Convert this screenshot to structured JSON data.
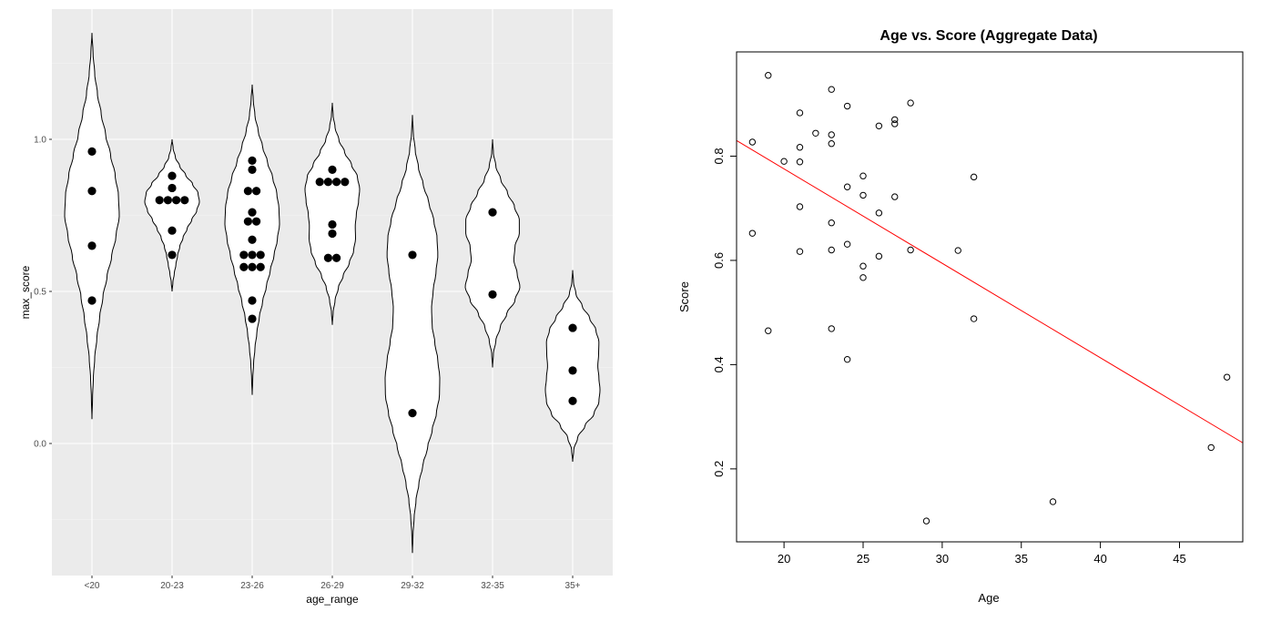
{
  "chart_data": [
    {
      "type": "violin",
      "title": "",
      "xlabel": "age_range",
      "ylabel": "max_score",
      "categories": [
        "<20",
        "20-23",
        "23-26",
        "26-29",
        "29-32",
        "32-35",
        "35+"
      ],
      "yticks": [
        "0.0",
        "0.5",
        "1.0"
      ],
      "ylim": [
        -0.4,
        1.43
      ],
      "background": "#ebebeb",
      "grid": true,
      "groups": [
        {
          "category": "<20",
          "points": [
            0.96,
            0.83,
            0.65,
            0.47
          ],
          "range": [
            0.08,
            1.35
          ],
          "shape": [
            0.02,
            0.05,
            0.1,
            0.18,
            0.28,
            0.4,
            0.55,
            0.72,
            0.88,
            1.0,
            0.97,
            0.85,
            0.68,
            0.5,
            0.34,
            0.2,
            0.1,
            0.04
          ]
        },
        {
          "category": "20-23",
          "points": [
            0.88,
            0.84,
            0.8,
            0.8,
            0.8,
            0.8,
            0.7,
            0.62
          ],
          "range": [
            0.5,
            1.0
          ],
          "shape": [
            0.03,
            0.08,
            0.14,
            0.2,
            0.28,
            0.4,
            0.55,
            0.72,
            0.9,
            1.0,
            0.95,
            0.75,
            0.5,
            0.28,
            0.12,
            0.04
          ]
        },
        {
          "category": "23-26",
          "points": [
            0.93,
            0.9,
            0.83,
            0.83,
            0.76,
            0.73,
            0.73,
            0.67,
            0.62,
            0.62,
            0.62,
            0.58,
            0.58,
            0.58,
            0.47,
            0.41
          ],
          "range": [
            0.16,
            1.18
          ],
          "shape": [
            0.02,
            0.05,
            0.1,
            0.17,
            0.26,
            0.38,
            0.52,
            0.66,
            0.8,
            0.92,
            1.0,
            0.98,
            0.9,
            0.75,
            0.56,
            0.38,
            0.22,
            0.1,
            0.04
          ]
        },
        {
          "category": "26-29",
          "points": [
            0.9,
            0.86,
            0.86,
            0.86,
            0.86,
            0.72,
            0.69,
            0.61,
            0.61
          ],
          "range": [
            0.39,
            1.12
          ],
          "shape": [
            0.03,
            0.1,
            0.22,
            0.4,
            0.62,
            0.78,
            0.85,
            0.84,
            0.88,
            0.96,
            1.0,
            0.92,
            0.7,
            0.45,
            0.24,
            0.1,
            0.03
          ]
        },
        {
          "category": "29-32",
          "points": [
            0.62,
            0.1
          ],
          "range": [
            -0.36,
            1.08
          ],
          "shape": [
            0.02,
            0.06,
            0.13,
            0.24,
            0.38,
            0.55,
            0.72,
            0.88,
            0.99,
            1.0,
            0.93,
            0.82,
            0.72,
            0.7,
            0.76,
            0.86,
            0.93,
            0.9,
            0.78,
            0.6,
            0.4,
            0.22,
            0.1,
            0.03
          ]
        },
        {
          "category": "32-35",
          "points": [
            0.76,
            0.49
          ],
          "range": [
            0.25,
            1.0
          ],
          "shape": [
            0.03,
            0.12,
            0.28,
            0.52,
            0.82,
            1.0,
            0.9,
            0.78,
            0.82,
            0.98,
            0.98,
            0.8,
            0.55,
            0.3,
            0.12,
            0.03
          ]
        },
        {
          "category": "35+",
          "points": [
            0.38,
            0.24,
            0.14
          ],
          "range": [
            -0.06,
            0.57
          ],
          "shape": [
            0.04,
            0.18,
            0.45,
            0.78,
            0.96,
            1.0,
            0.96,
            0.92,
            0.95,
            0.96,
            0.85,
            0.62,
            0.35,
            0.12,
            0.03
          ]
        }
      ]
    },
    {
      "type": "scatter",
      "title": "Age vs. Score (Aggregate Data)",
      "xlabel": "Age",
      "ylabel": "Score",
      "xlim": [
        17,
        49
      ],
      "ylim": [
        0.06,
        1.0
      ],
      "xticks": [
        20,
        25,
        30,
        35,
        40,
        45
      ],
      "yticks": [
        0.2,
        0.4,
        0.6,
        0.8
      ],
      "fit_line": {
        "color": "#ff0000",
        "from": [
          17,
          0.83
        ],
        "to": [
          49,
          0.25
        ]
      },
      "points": [
        [
          18,
          0.827
        ],
        [
          18,
          0.652
        ],
        [
          19,
          0.955
        ],
        [
          19,
          0.465
        ],
        [
          20,
          0.79
        ],
        [
          21,
          0.883
        ],
        [
          21,
          0.817
        ],
        [
          21,
          0.789
        ],
        [
          21,
          0.703
        ],
        [
          21,
          0.617
        ],
        [
          22,
          0.844
        ],
        [
          23,
          0.928
        ],
        [
          23,
          0.841
        ],
        [
          23,
          0.824
        ],
        [
          23,
          0.672
        ],
        [
          23,
          0.62
        ],
        [
          23,
          0.469
        ],
        [
          24,
          0.896
        ],
        [
          24,
          0.741
        ],
        [
          24,
          0.631
        ],
        [
          24,
          0.41
        ],
        [
          25,
          0.762
        ],
        [
          25,
          0.725
        ],
        [
          25,
          0.589
        ],
        [
          25,
          0.567
        ],
        [
          26,
          0.858
        ],
        [
          26,
          0.691
        ],
        [
          26,
          0.608
        ],
        [
          27,
          0.87
        ],
        [
          27,
          0.862
        ],
        [
          27,
          0.722
        ],
        [
          28,
          0.902
        ],
        [
          28,
          0.62
        ],
        [
          29,
          0.1
        ],
        [
          31,
          0.619
        ],
        [
          32,
          0.76
        ],
        [
          32,
          0.488
        ],
        [
          37,
          0.137
        ],
        [
          47,
          0.241
        ],
        [
          48,
          0.376
        ]
      ]
    }
  ]
}
